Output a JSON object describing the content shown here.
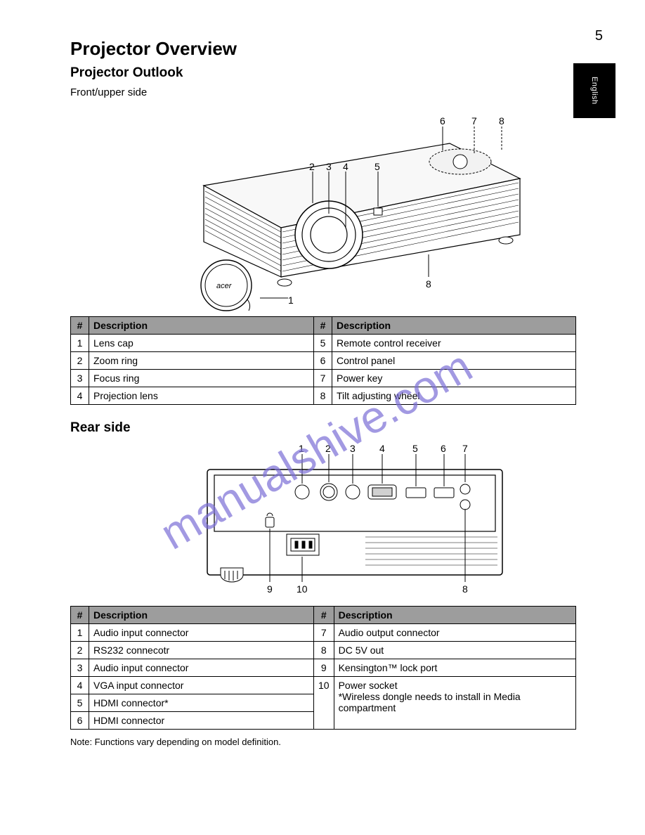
{
  "page_number": "5",
  "side_tab": "English",
  "watermark_text": "manualshive.com",
  "title": "Projector Overview",
  "section1_heading": "Projector Outlook",
  "section1_sub": "Front/upper side",
  "table1": {
    "headers": [
      "#",
      "Description",
      "#",
      "Description"
    ],
    "rows": [
      [
        "1",
        "Lens cap",
        "5",
        "Remote control receiver"
      ],
      [
        "2",
        "Zoom ring",
        "6",
        "Control panel"
      ],
      [
        "3",
        "Focus ring",
        "7",
        "Power key"
      ],
      [
        "4",
        "Projection lens",
        "8",
        "Tilt adjusting wheel"
      ]
    ]
  },
  "section2_heading": "Rear side",
  "table2": {
    "headers": [
      "#",
      "Description",
      "#",
      "Description"
    ],
    "rows": [
      [
        "1",
        "Audio input connector",
        "7",
        "Audio output connector"
      ],
      [
        "2",
        "RS232 connecotr",
        "8",
        "DC 5V out"
      ],
      [
        "3",
        "Audio input connector",
        "9",
        "Kensington™ lock port"
      ],
      [
        "4",
        "VGA input connector",
        "10",
        "Power socket\n*Wireless dongle needs to install in Media compartment"
      ],
      [
        "5",
        "HDMI connector*",
        "",
        ""
      ],
      [
        "6",
        "HDMI connector",
        "",
        ""
      ]
    ]
  },
  "footnote": "Note: Functions vary depending on model definition.",
  "fig1_numbers": [
    "1",
    "2",
    "3",
    "4",
    "5",
    "6",
    "7",
    "8"
  ],
  "fig2_numbers": [
    "1",
    "2",
    "3",
    "4",
    "5",
    "6",
    "7",
    "8",
    "9",
    "10"
  ],
  "colors": {
    "header_bg": "#9d9d9d",
    "border": "#000000",
    "watermark": "#7b6fd6",
    "tab_bg": "#000000",
    "tab_fg": "#ffffff"
  }
}
